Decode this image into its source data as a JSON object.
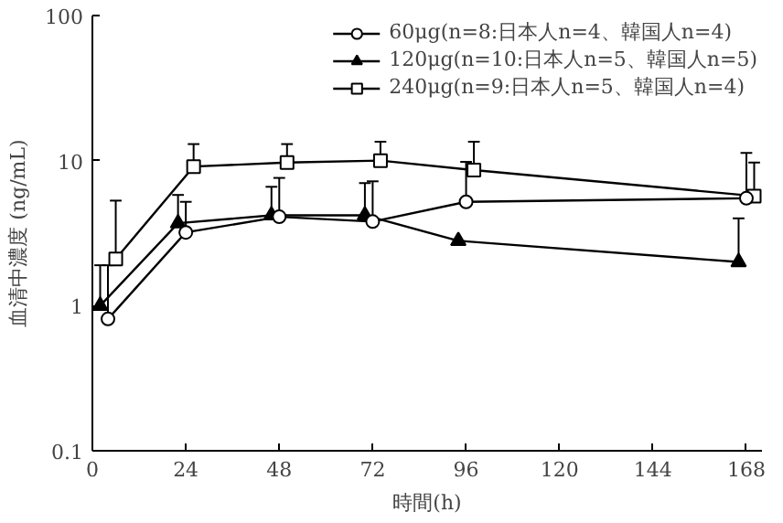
{
  "chart_data": {
    "type": "line",
    "xlabel": "時間(h)",
    "ylabel": "血清中濃度 (ng/mL)",
    "log": "y",
    "xlim": [
      0,
      172
    ],
    "xticks": [
      0,
      24,
      48,
      72,
      96,
      120,
      144,
      168
    ],
    "ylim": [
      0.1,
      100
    ],
    "yticks": [
      0.1,
      1,
      10,
      100
    ],
    "legend": "top right",
    "grid": false,
    "line_style": "solid",
    "series": [
      {
        "name": "60μg(n=8:日本人n=4、韓国人n=4)",
        "color": "#000000",
        "marker": "circle",
        "x": [
          4,
          24,
          48,
          72,
          96,
          168
        ],
        "values": [
          0.81,
          3.2,
          4.1,
          3.8,
          5.2,
          5.5
        ],
        "errors": [
          [
            0.81,
            1.9
          ],
          [
            3.2,
            5.2
          ],
          [
            4.1,
            7.6
          ],
          [
            3.8,
            7.2
          ],
          [
            5.2,
            9.8
          ],
          [
            5.5,
            11.3
          ]
        ]
      },
      {
        "name": "120μg(n=10:日本人n=5、韓国人n=5)",
        "color": "#000000",
        "marker": "triangle",
        "x": [
          2,
          22,
          46,
          70,
          94,
          166
        ],
        "values": [
          1.0,
          3.7,
          4.2,
          4.2,
          2.8,
          2.0
        ],
        "errors": [
          [
            1.0,
            1.9
          ],
          [
            3.7,
            5.8
          ],
          [
            4.2,
            6.6
          ],
          [
            4.2,
            7.0
          ],
          null,
          [
            2.0,
            4.0
          ]
        ]
      },
      {
        "name": "240μg(n=9:日本人n=5、韓国人n=4)",
        "color": "#000000",
        "marker": "square",
        "x": [
          6,
          26,
          50,
          74,
          98,
          170
        ],
        "values": [
          2.1,
          9.1,
          9.7,
          10.0,
          8.6,
          5.7
        ],
        "errors": [
          [
            2.1,
            5.3
          ],
          [
            9.1,
            13.0
          ],
          [
            9.7,
            13.0
          ],
          [
            10.0,
            13.5
          ],
          [
            8.6,
            13.5
          ],
          [
            5.7,
            9.7
          ]
        ]
      }
    ]
  }
}
